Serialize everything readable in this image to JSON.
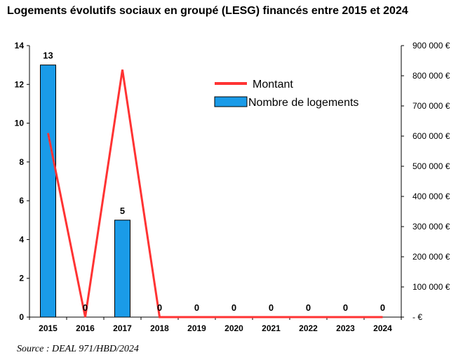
{
  "title": "Logements évolutifs sociaux en groupé (LESG) financés entre 2015 et 2024",
  "source": "Source : DEAL 971/HBD/2024",
  "chart_data": {
    "type": "bar",
    "categories": [
      "2015",
      "2016",
      "2017",
      "2018",
      "2019",
      "2020",
      "2021",
      "2022",
      "2023",
      "2024"
    ],
    "series": [
      {
        "name": "Nombre de logements",
        "type": "bar",
        "axis": "left",
        "color": "#1a9be8",
        "values": [
          13,
          0,
          5,
          0,
          0,
          0,
          0,
          0,
          0,
          0
        ],
        "data_labels": [
          "13",
          "0",
          "5",
          "0",
          "0",
          "0",
          "0",
          "0",
          "0",
          "0"
        ]
      },
      {
        "name": "Montant",
        "type": "line",
        "axis": "right",
        "color": "#ff3333",
        "values": [
          610000,
          0,
          820000,
          0,
          0,
          0,
          0,
          0,
          0,
          0
        ]
      }
    ],
    "y_left": {
      "ylim": [
        0,
        14
      ],
      "ticks": [
        "0",
        "2",
        "4",
        "6",
        "8",
        "10",
        "12",
        "14"
      ]
    },
    "y_right": {
      "ylim": [
        0,
        900000
      ],
      "ticks": [
        "- €",
        "100 000 €",
        "200 000 €",
        "300 000 €",
        "400 000 €",
        "500 000 €",
        "600 000 €",
        "700 000 €",
        "800 000 €",
        "900 000 €"
      ]
    },
    "legend": {
      "position": "top-right",
      "entries": [
        "Montant",
        "Nombre de logements"
      ]
    },
    "grid": false
  }
}
